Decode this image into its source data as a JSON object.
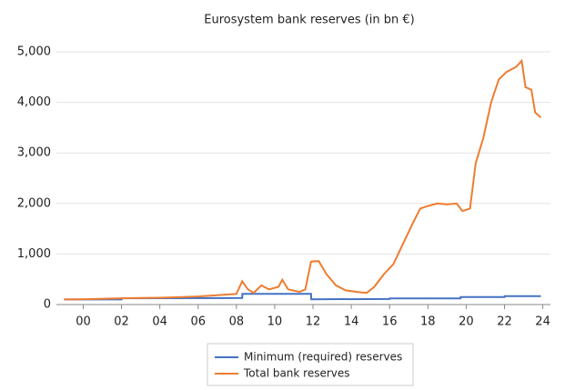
{
  "chart_data": {
    "type": "line",
    "title": "Eurosystem bank reserves (in bn €)",
    "xlim": [
      1998.6,
      2024.4
    ],
    "xticks": [
      {
        "value": 2000,
        "label": "00"
      },
      {
        "value": 2002,
        "label": "02"
      },
      {
        "value": 2004,
        "label": "04"
      },
      {
        "value": 2006,
        "label": "06"
      },
      {
        "value": 2008,
        "label": "08"
      },
      {
        "value": 2010,
        "label": "10"
      },
      {
        "value": 2012,
        "label": "12"
      },
      {
        "value": 2014,
        "label": "14"
      },
      {
        "value": 2016,
        "label": "16"
      },
      {
        "value": 2018,
        "label": "18"
      },
      {
        "value": 2020,
        "label": "20"
      },
      {
        "value": 2022,
        "label": "22"
      },
      {
        "value": 2024,
        "label": "24"
      }
    ],
    "ylim": [
      0,
      5000
    ],
    "yticks": [
      0,
      {
        "value": 1000,
        "label": "1,000"
      },
      {
        "value": 2000,
        "label": "2,000"
      },
      {
        "value": 3000,
        "label": "3,000"
      },
      {
        "value": 4000,
        "label": "4,000"
      },
      {
        "value": 5000,
        "label": "5,000"
      }
    ],
    "grid": true,
    "legend": "bottom",
    "series": [
      {
        "name": "Minimum (required) reserves",
        "color": "#4472c4",
        "x": [
          1999,
          2002,
          2002.01,
          2008.3,
          2008.31,
          2011.9,
          2011.91,
          2016,
          2016.01,
          2019.7,
          2019.71,
          2022,
          2022.01,
          2023.9
        ],
        "values": [
          100,
          100,
          125,
          130,
          210,
          210,
          105,
          110,
          120,
          120,
          150,
          150,
          165,
          165
        ]
      },
      {
        "name": "Total bank reserves",
        "color": "#ed7d31",
        "x": [
          1999,
          2000,
          2001,
          2002,
          2003,
          2004,
          2005,
          2006,
          2007,
          2008,
          2008.3,
          2008.6,
          2008.9,
          2009.3,
          2009.7,
          2010.2,
          2010.4,
          2010.7,
          2011.3,
          2011.6,
          2011.9,
          2012.3,
          2012.7,
          2013.2,
          2013.7,
          2014.3,
          2014.8,
          2015.2,
          2015.7,
          2016.2,
          2016.7,
          2017.2,
          2017.6,
          2018,
          2018.5,
          2019,
          2019.5,
          2019.8,
          2020.2,
          2020.5,
          2020.9,
          2021.3,
          2021.7,
          2022.1,
          2022.6,
          2022.9,
          2023.1,
          2023.4,
          2023.6,
          2023.9
        ],
        "values": [
          100,
          105,
          115,
          125,
          130,
          135,
          145,
          160,
          185,
          210,
          460,
          300,
          230,
          380,
          300,
          350,
          490,
          300,
          250,
          300,
          850,
          860,
          600,
          380,
          280,
          250,
          230,
          350,
          600,
          800,
          1200,
          1600,
          1900,
          1950,
          2000,
          1980,
          2000,
          1850,
          1900,
          2800,
          3300,
          4000,
          4450,
          4600,
          4700,
          4820,
          4300,
          4250,
          3800,
          3700
        ]
      }
    ]
  }
}
